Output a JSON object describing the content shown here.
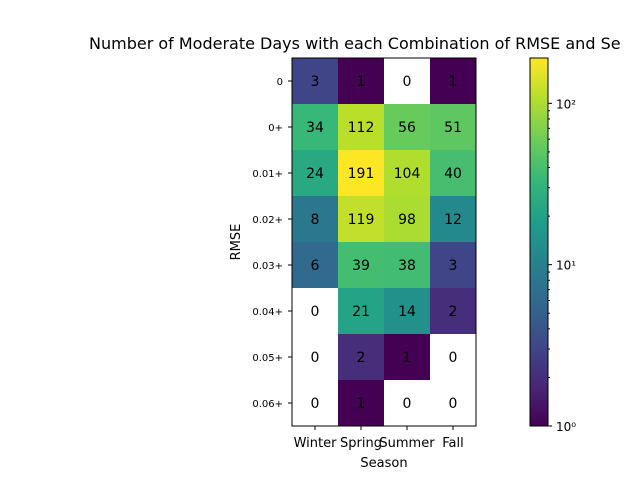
{
  "chart_data": {
    "type": "heatmap",
    "title": "Number of Moderate Days with each Combination of RMSE and Se",
    "xlabel": "Season",
    "ylabel": "RMSE",
    "x_categories": [
      "Winter",
      "Spring",
      "Summer",
      "Fall"
    ],
    "y_categories": [
      "0",
      "0+",
      "0.01+",
      "0.02+",
      "0.03+",
      "0.04+",
      "0.05+",
      "0.06+"
    ],
    "values": [
      [
        3,
        1,
        0,
        1
      ],
      [
        34,
        112,
        56,
        51
      ],
      [
        24,
        191,
        104,
        40
      ],
      [
        8,
        119,
        98,
        12
      ],
      [
        6,
        39,
        38,
        3
      ],
      [
        0,
        21,
        14,
        2
      ],
      [
        0,
        2,
        1,
        0
      ],
      [
        0,
        1,
        0,
        0
      ]
    ],
    "colorscale": "viridis",
    "color_scale_type": "log",
    "color_range": [
      1,
      191
    ],
    "zero_color": "#ffffff",
    "colorbar_ticks": [
      {
        "value": 1,
        "label": "10⁰"
      },
      {
        "value": 10,
        "label": "10¹"
      },
      {
        "value": 100,
        "label": "10²"
      }
    ]
  }
}
